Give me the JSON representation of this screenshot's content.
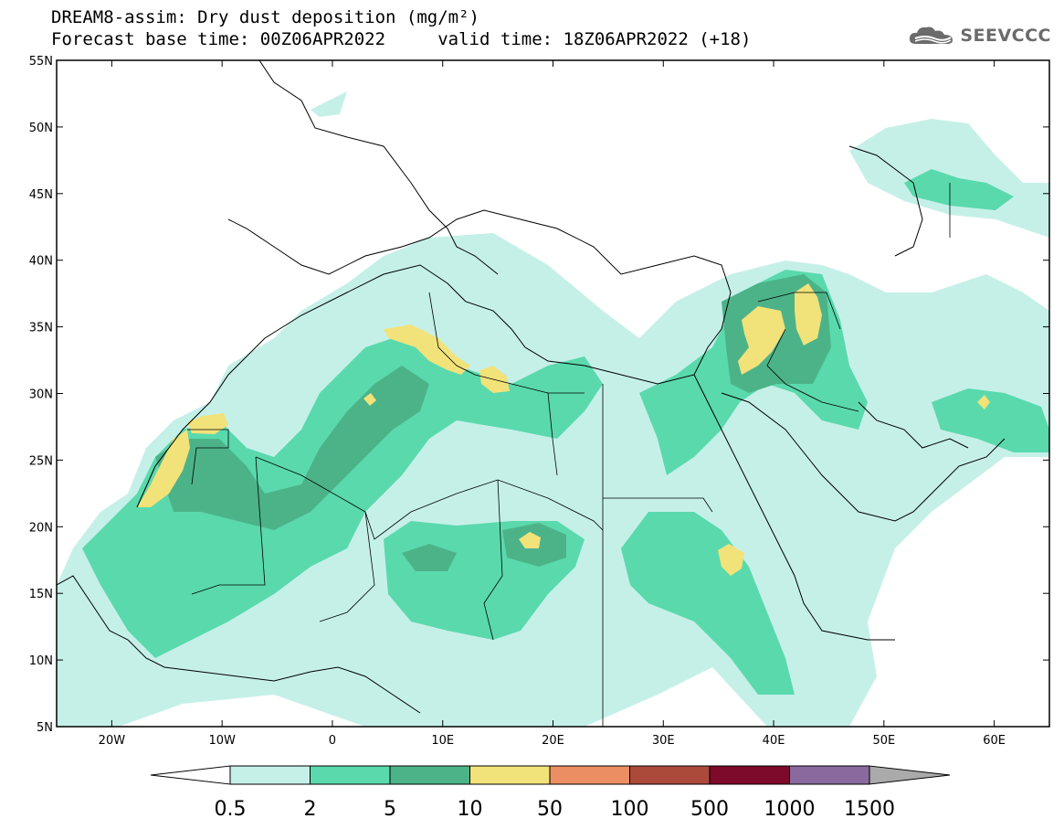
{
  "title_line_1": "DREAM8-assim: Dry dust deposition (mg/m²)",
  "title_line_2": "Forecast base time: 00Z06APR2022     valid time: 18Z06APR2022 (+18)",
  "logo_text": "SEEVCCC",
  "map": {
    "lon_range": [
      -25,
      65
    ],
    "lat_range": [
      5,
      55
    ],
    "lat_ticks": [
      {
        "value": 55,
        "label": "55N"
      },
      {
        "value": 50,
        "label": "50N"
      },
      {
        "value": 45,
        "label": "45N"
      },
      {
        "value": 40,
        "label": "40N"
      },
      {
        "value": 35,
        "label": "35N"
      },
      {
        "value": 30,
        "label": "30N"
      },
      {
        "value": 25,
        "label": "25N"
      },
      {
        "value": 20,
        "label": "20N"
      },
      {
        "value": 15,
        "label": "15N"
      },
      {
        "value": 10,
        "label": "10N"
      },
      {
        "value": 5,
        "label": "5N"
      }
    ],
    "lon_ticks": [
      {
        "value": -20,
        "label": "20W"
      },
      {
        "value": -10,
        "label": "10W"
      },
      {
        "value": 0,
        "label": "0"
      },
      {
        "value": 10,
        "label": "10E"
      },
      {
        "value": 20,
        "label": "20E"
      },
      {
        "value": 30,
        "label": "30E"
      },
      {
        "value": 40,
        "label": "40E"
      },
      {
        "value": 50,
        "label": "50E"
      },
      {
        "value": 60,
        "label": "60E"
      }
    ]
  },
  "colorbar": {
    "colors": [
      "#c5f0e8",
      "#5ad9ad",
      "#4cb389",
      "#f2e27a",
      "#eb8e63",
      "#ab4a3b",
      "#7d0a2a",
      "#8a6a9e"
    ],
    "over_color": "#aaaaaa",
    "under_color": "#ffffff",
    "labels": [
      "0.5",
      "2",
      "5",
      "10",
      "50",
      "100",
      "500",
      "1000",
      "1500"
    ]
  }
}
